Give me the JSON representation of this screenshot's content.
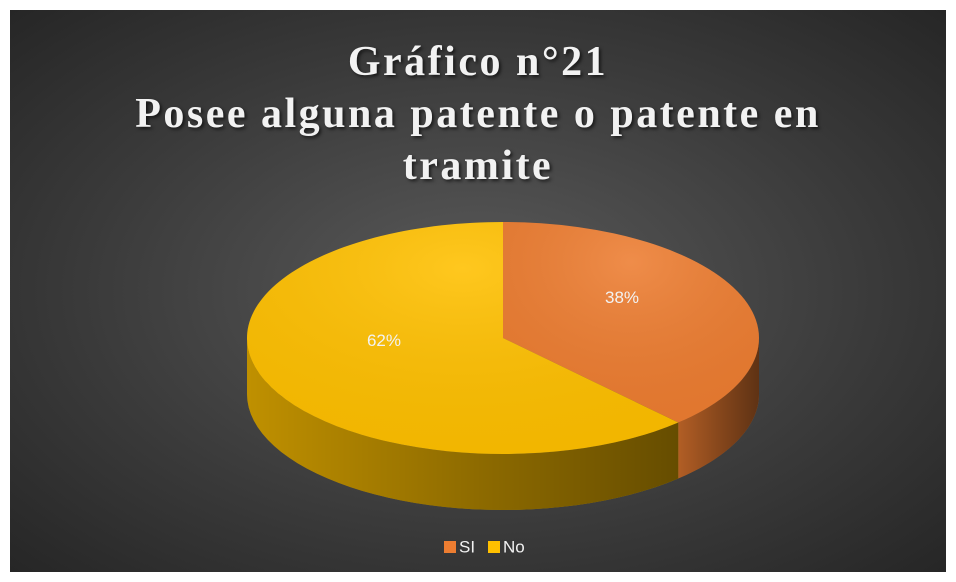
{
  "chart_data": {
    "type": "pie",
    "title": "Gráfico n°21",
    "subtitle": "Posee alguna patente o patente en tramite",
    "categories": [
      "SI",
      "No"
    ],
    "values": [
      38,
      62
    ],
    "value_labels": [
      "38%",
      "62%"
    ],
    "colors": [
      "#ED7D31",
      "#FFC000"
    ],
    "legend": "bottom"
  }
}
